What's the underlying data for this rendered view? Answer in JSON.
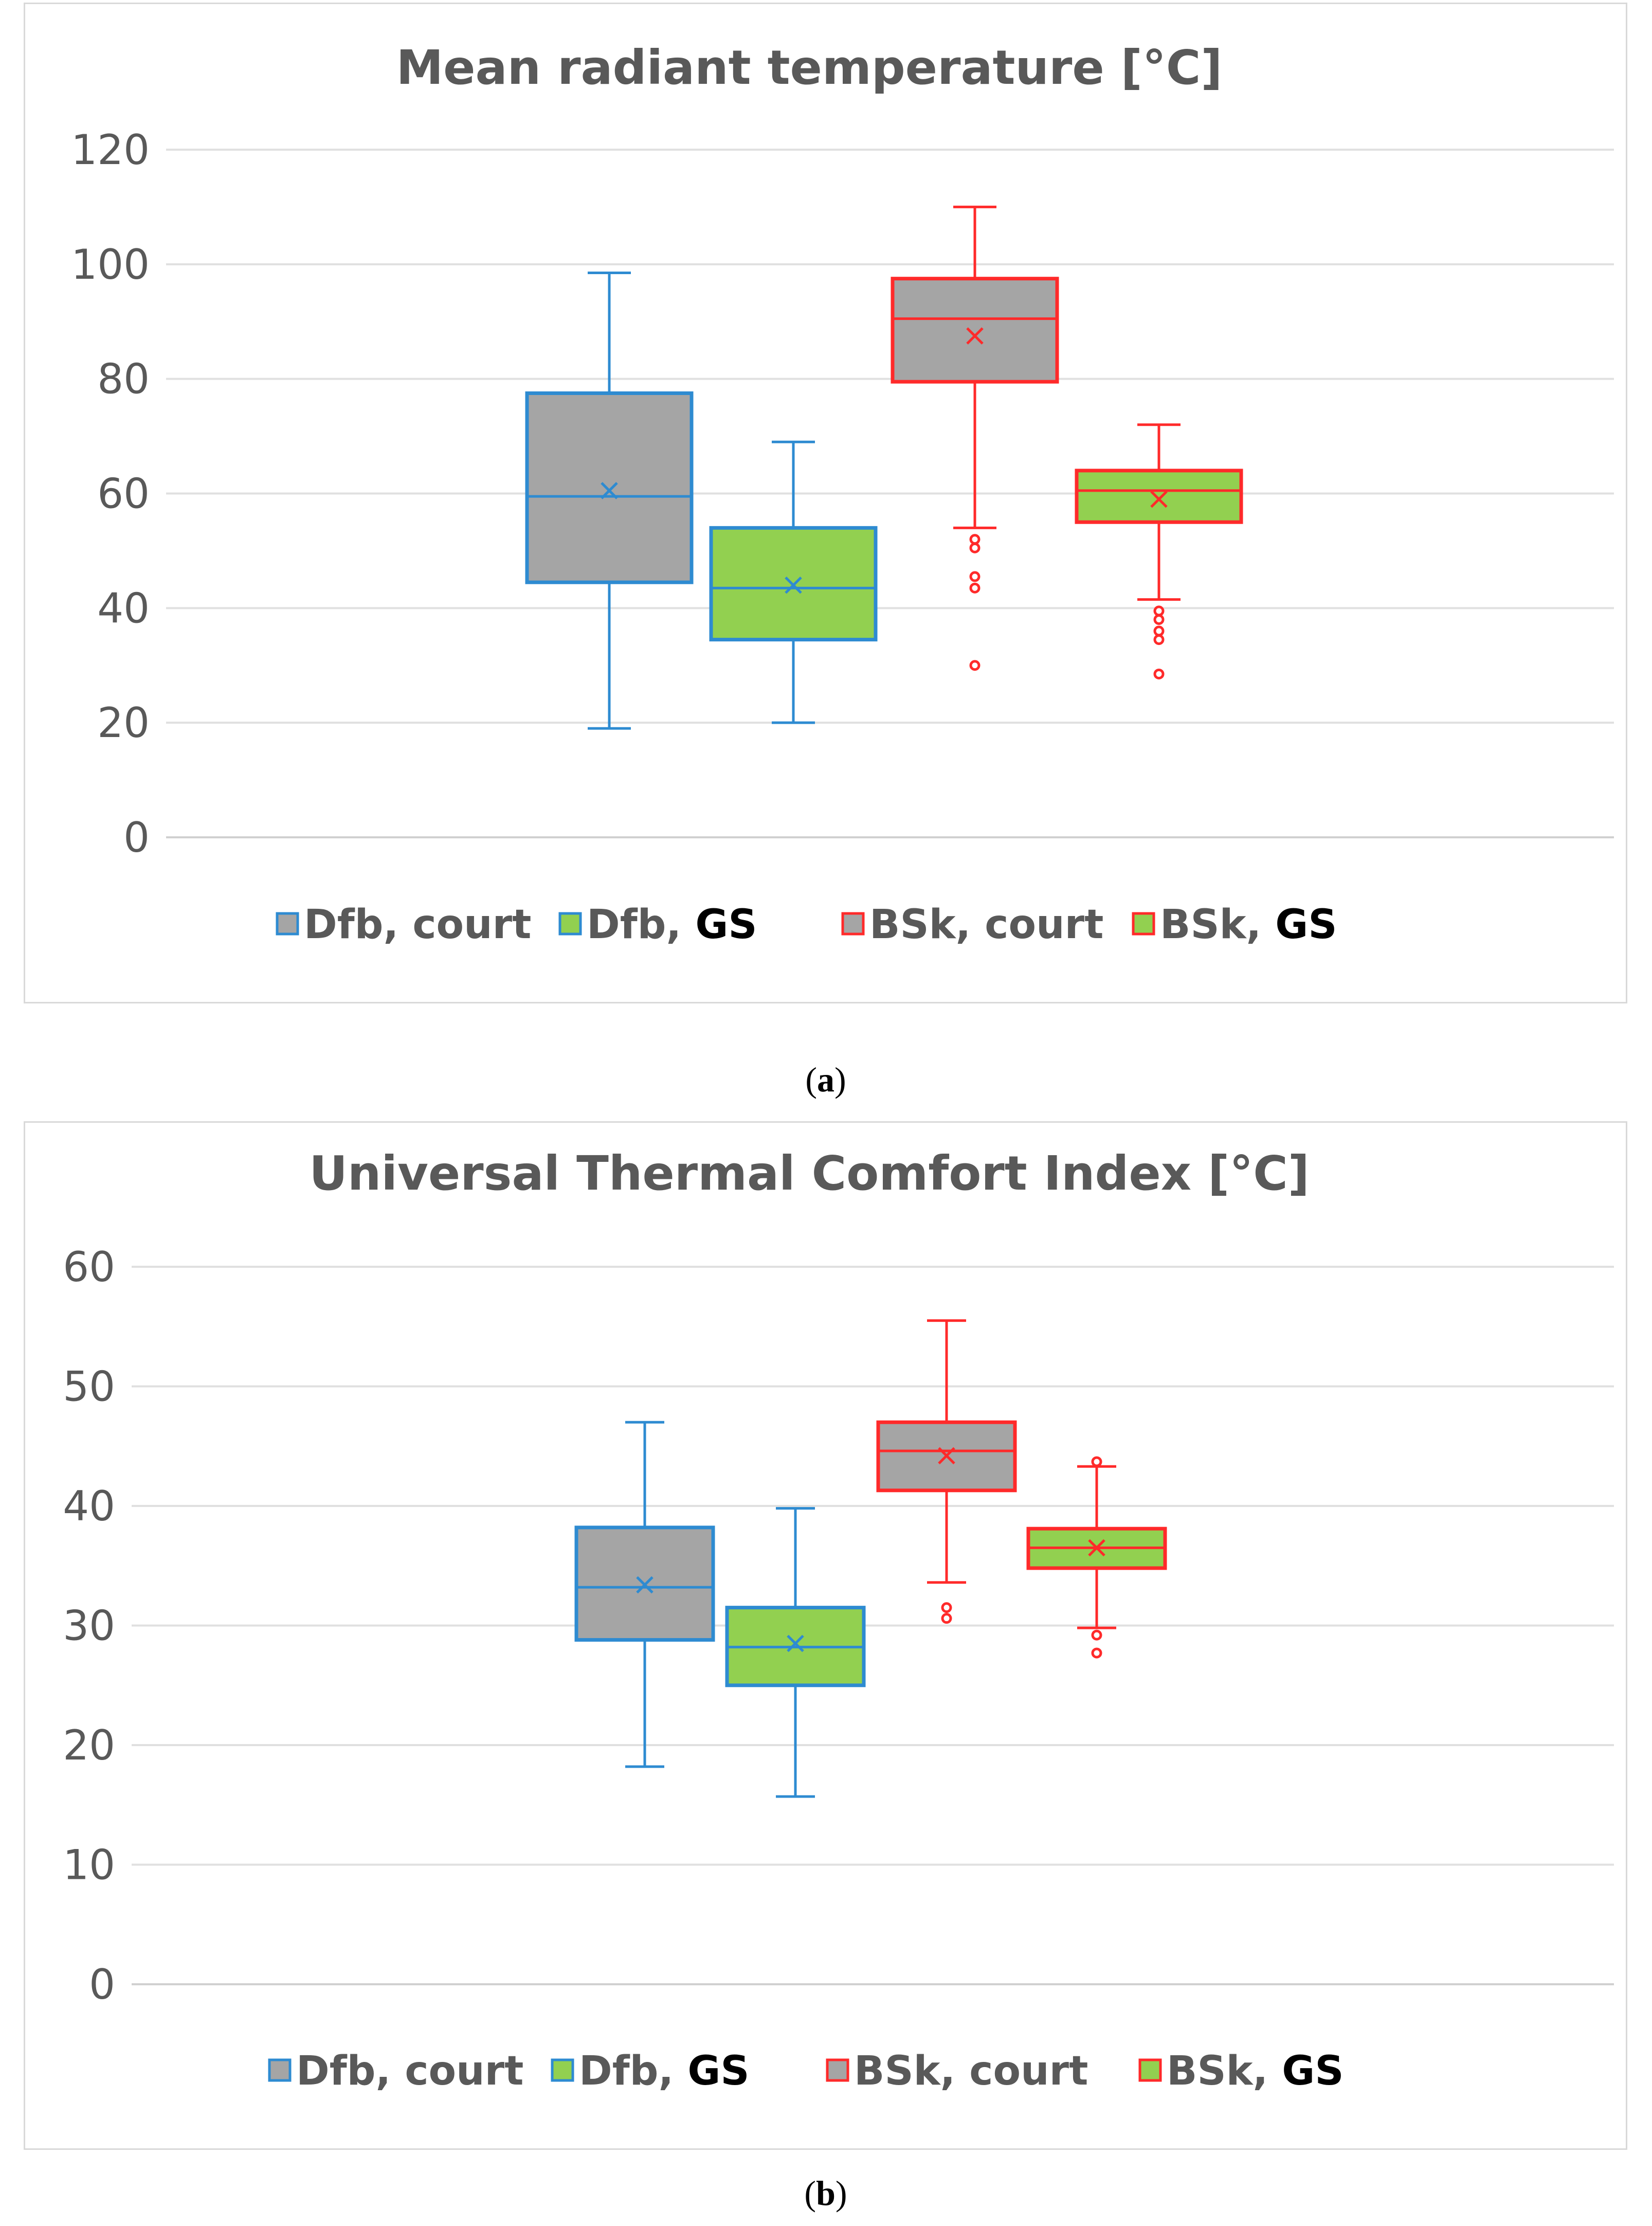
{
  "colors": {
    "gray_fill": "#a5a5a5",
    "green_fill": "#92d050",
    "dfb_line": "#2e8bd1",
    "bsk_line": "#ff2a2a",
    "grid": "#e0e0e0",
    "text": "#595959"
  },
  "chart_data": [
    {
      "type": "box",
      "title": "Mean radiant temperature [°C]",
      "caption_letter": "a",
      "ylim": [
        0,
        120
      ],
      "yticks": [
        0,
        20,
        40,
        60,
        80,
        100,
        120
      ],
      "legend": [
        {
          "main": "Dfb, ",
          "sub": "court",
          "line": "#2e8bd1",
          "fill": "#a5a5a5"
        },
        {
          "main": "Dfb, ",
          "sub": "GS",
          "line": "#2e8bd1",
          "fill": "#92d050"
        },
        {
          "main": "BSk, ",
          "sub": "court",
          "line": "#ff2a2a",
          "fill": "#a5a5a5"
        },
        {
          "main": "BSk, ",
          "sub": "GS",
          "line": "#ff2a2a",
          "fill": "#92d050"
        }
      ],
      "series": [
        {
          "name": "Dfb, court",
          "min": 19,
          "q1": 44.5,
          "median": 59.5,
          "q3": 77.5,
          "max": 98.5,
          "mean": 60.5,
          "outliers": []
        },
        {
          "name": "Dfb, GS",
          "min": 20,
          "q1": 34.5,
          "median": 43.5,
          "q3": 54,
          "max": 69,
          "mean": 44,
          "outliers": []
        },
        {
          "name": "BSk, court",
          "min": 54,
          "q1": 79.5,
          "median": 90.5,
          "q3": 97.5,
          "max": 110,
          "mean": 87.5,
          "outliers": [
            52,
            50.5,
            45.5,
            43.5,
            30
          ]
        },
        {
          "name": "BSk, GS",
          "min": 41.5,
          "q1": 55,
          "median": 60.5,
          "q3": 64,
          "max": 72,
          "mean": 59,
          "outliers": [
            39.5,
            38,
            36,
            34.5,
            28.5
          ]
        }
      ]
    },
    {
      "type": "box",
      "title": "Universal Thermal Comfort Index [°C]",
      "caption_letter": "b",
      "ylim": [
        0,
        60
      ],
      "yticks": [
        0,
        10,
        20,
        30,
        40,
        50,
        60
      ],
      "legend": [
        {
          "main": "Dfb, ",
          "sub": "court",
          "line": "#2e8bd1",
          "fill": "#a5a5a5"
        },
        {
          "main": "Dfb, ",
          "sub": "GS",
          "line": "#2e8bd1",
          "fill": "#92d050"
        },
        {
          "main": "BSk, ",
          "sub": "court",
          "line": "#ff2a2a",
          "fill": "#a5a5a5"
        },
        {
          "main": "BSk, ",
          "sub": "GS",
          "line": "#ff2a2a",
          "fill": "#92d050"
        }
      ],
      "series": [
        {
          "name": "Dfb, court",
          "min": 18.2,
          "q1": 28.8,
          "median": 33.2,
          "q3": 38.2,
          "max": 47,
          "mean": 33.4,
          "outliers": []
        },
        {
          "name": "Dfb, GS",
          "min": 15.7,
          "q1": 25,
          "median": 28.2,
          "q3": 31.5,
          "max": 39.8,
          "mean": 28.5,
          "outliers": []
        },
        {
          "name": "BSk, court",
          "min": 33.6,
          "q1": 41.3,
          "median": 44.6,
          "q3": 47,
          "max": 55.5,
          "mean": 44.2,
          "outliers": [
            31.5,
            30.6
          ]
        },
        {
          "name": "BSk, GS",
          "min": 29.8,
          "q1": 34.8,
          "median": 36.5,
          "q3": 38.1,
          "max": 43.3,
          "mean": 36.5,
          "outliers": [
            43.7,
            29.2,
            27.7
          ]
        }
      ]
    }
  ]
}
